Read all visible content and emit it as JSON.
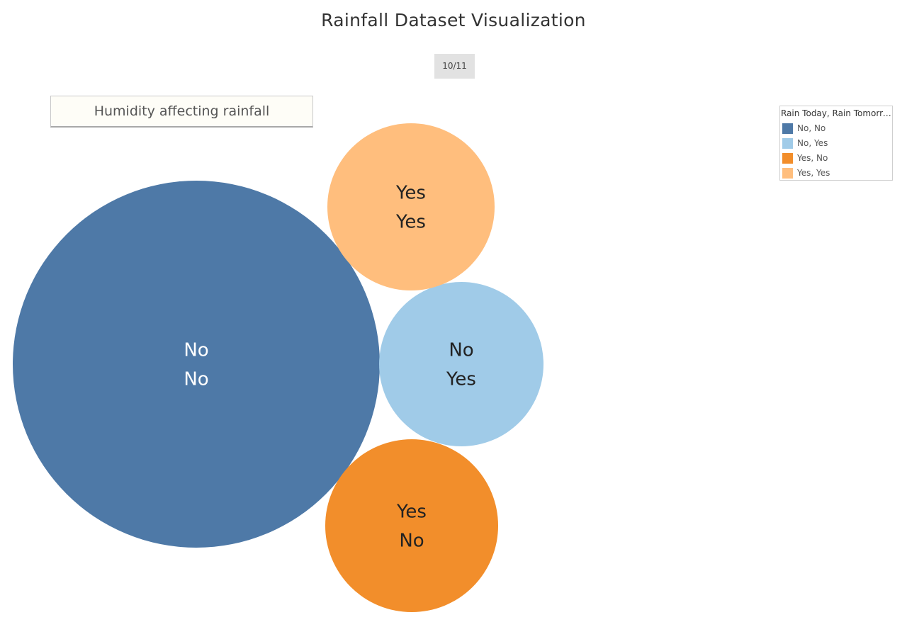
{
  "title": "Rainfall Dataset Visualization",
  "page_indicator": "10/11",
  "caption": "Humidity affecting rainfall",
  "legend": {
    "title": "Rain Today, Rain Tomorro..",
    "items": [
      {
        "label": "No, No",
        "color": "#4e79a7"
      },
      {
        "label": "No, Yes",
        "color": "#a0cbe8"
      },
      {
        "label": "Yes, No",
        "color": "#f28e2b"
      },
      {
        "label": "Yes, Yes",
        "color": "#ffbe7d"
      }
    ]
  },
  "chart_data": {
    "type": "bubble",
    "legend_position": "top-right",
    "series": [
      {
        "category": "No, No",
        "label_lines": [
          "No",
          "No"
        ],
        "color": "#4e79a7",
        "text_color": "#ffffff"
      },
      {
        "category": "No, Yes",
        "label_lines": [
          "No",
          "Yes"
        ],
        "color": "#a0cbe8",
        "text_color": "#222222"
      },
      {
        "category": "Yes, No",
        "label_lines": [
          "Yes",
          "No"
        ],
        "color": "#f28e2b",
        "text_color": "#222222"
      },
      {
        "category": "Yes, Yes",
        "label_lines": [
          "Yes",
          "Yes"
        ],
        "color": "#ffbe7d",
        "text_color": "#222222"
      }
    ]
  }
}
